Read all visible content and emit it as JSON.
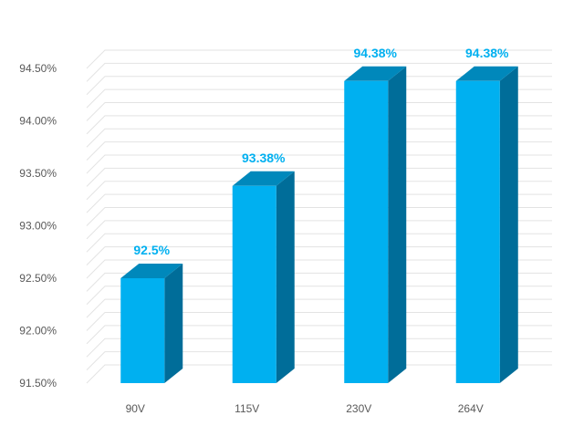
{
  "chart_data": {
    "type": "bar",
    "title": "",
    "xlabel": "",
    "ylabel": "",
    "categories": [
      "90V",
      "115V",
      "230V",
      "264V"
    ],
    "values": [
      92.5,
      93.38,
      94.38,
      94.38
    ],
    "data_labels": [
      "92.5%",
      "93.38%",
      "94.38%",
      "94.38%"
    ],
    "y_ticks": [
      91.5,
      92.0,
      92.5,
      93.0,
      93.5,
      94.0,
      94.5
    ],
    "y_tick_labels": [
      "91.50%",
      "92.00%",
      "92.50%",
      "93.00%",
      "93.50%",
      "94.00%",
      "94.50%"
    ],
    "ylim": [
      91.5,
      94.5
    ],
    "grid": true,
    "legend": "none",
    "style": "3d-column",
    "colors": {
      "bar_front": "#00b0f0",
      "bar_top": "#0088bb",
      "bar_side": "#006d99",
      "data_label": "#00b0f0",
      "axis_text": "#595959"
    }
  }
}
